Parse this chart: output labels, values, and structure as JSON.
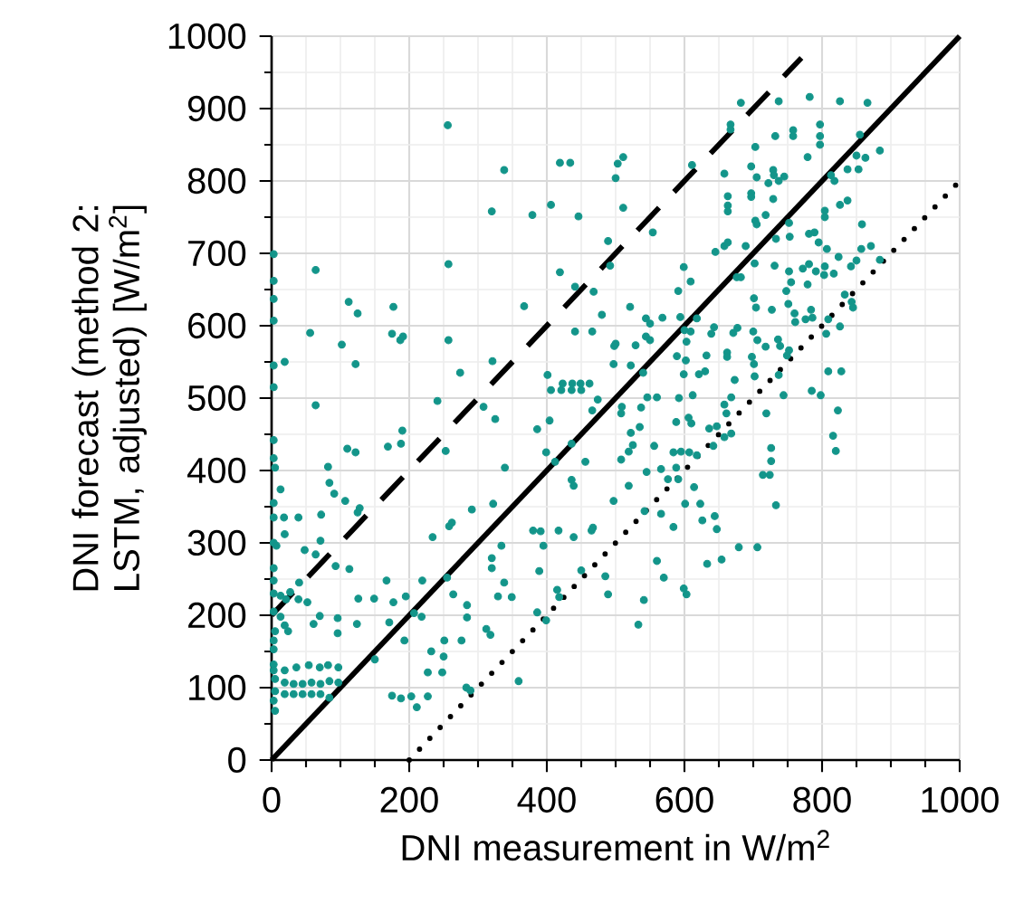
{
  "chart_data": {
    "type": "scatter",
    "xlabel": "DNI measurement in W/m$^{2}$",
    "ylabel": "DNI forecast (method 2: LSTM, adjusted) [W/m$^{2}$]",
    "xlim": [
      0,
      1000
    ],
    "ylim": [
      0,
      1000
    ],
    "xticks": [
      0,
      200,
      400,
      600,
      800,
      1000
    ],
    "yticks": [
      0,
      100,
      200,
      300,
      400,
      500,
      600,
      700,
      800,
      900,
      1000
    ],
    "grid": true,
    "series": [
      {
        "type": "scatter",
        "marker": "circle",
        "color": "#13958a",
        "x": [
          256,
          338,
          419,
          434,
          320,
          379,
          406,
          446,
          500,
          503,
          511,
          511,
          489,
          492,
          419,
          441,
          468,
          367,
          480,
          441,
          466,
          498,
          3,
          3,
          3,
          3,
          3,
          3,
          19,
          64,
          56,
          112,
          125,
          102,
          122,
          177,
          175,
          187,
          191,
          257,
          257,
          321,
          274,
          401,
          423,
          437,
          449,
          462,
          682,
          737,
          782,
          826,
          866,
          667,
          667,
          732,
          758,
          758,
          797,
          797,
          797,
          855,
          703,
          779,
          850,
          863,
          884,
          837,
          853,
          813,
          818,
          697,
          705,
          729,
          730,
          745,
          737,
          722,
          697,
          697,
          729,
          658,
          611,
          663,
          663,
          663,
          703,
          705,
          718,
          752,
          804,
          804,
          826,
          837,
          858,
          554,
          645,
          658,
          663,
          689,
          733,
          753,
          781,
          789,
          795,
          807,
          824,
          857,
          871,
          884,
          609,
          599,
          591,
          676,
          682,
          702,
          731,
          752,
          772,
          755,
          779,
          748,
          781,
          791,
          804,
          803,
          817,
          842,
          850,
          833,
          843,
          845,
          521,
          544,
          550,
          568,
          594,
          618,
          609,
          600,
          701,
          704,
          727,
          751,
          760,
          761,
          776,
          784,
          786,
          809,
          826,
          806,
          500,
          497,
          529,
          544,
          550,
          603,
          643,
          639,
          671,
          677,
          700,
          706,
          718,
          662,
          662,
          632,
          698,
          736,
          739,
          752,
          749,
          809,
          828,
          589,
          602,
          522,
          540,
          673,
          701,
          702,
          737,
          785,
          599,
          621,
          630,
          3,
          3,
          5,
          13,
          3,
          3,
          18,
          39,
          19,
          3,
          7,
          3,
          3,
          3,
          27,
          40,
          13,
          21,
          39,
          52,
          3,
          13,
          19,
          24,
          5,
          3,
          3,
          3,
          3,
          5,
          5,
          3,
          5,
          19,
          36,
          54,
          70,
          82,
          97,
          19,
          32,
          45,
          58,
          71,
          84,
          97,
          19,
          32,
          45,
          58,
          71,
          84,
          64,
          82,
          84,
          91,
          107,
          72,
          48,
          64,
          71,
          93,
          113,
          110,
          122,
          169,
          190,
          188,
          241,
          253,
          128,
          125,
          167,
          149,
          177,
          195,
          171,
          193,
          150,
          96,
          96,
          124,
          126,
          70,
          61,
          175,
          188,
          203,
          211,
          227,
          219,
          207,
          218,
          232,
          250,
          248,
          227,
          251,
          276,
          264,
          284,
          255,
          234,
          258,
          262,
          291,
          284,
          312,
          318,
          283,
          289,
          308,
          325,
          339,
          322,
          334,
          320,
          320,
          338,
          329,
          349,
          359,
          386,
          404,
          399,
          412,
          436,
          436,
          439,
          456,
          466,
          474,
          509,
          497,
          467,
          465,
          439,
          417,
          391,
          380,
          395,
          389,
          415,
          418,
          450,
          485,
          489,
          386,
          399,
          406,
          421,
          436,
          450,
          798,
          744,
          823,
          816,
          820,
          726,
          726,
          733,
          714,
          724,
          719,
          658,
          668,
          661,
          658,
          668,
          647,
          636,
          642,
          607,
          618,
          614,
          623,
          601,
          644,
          647,
          626,
          584,
          595,
          588,
          576,
          591,
          566,
          545,
          556,
          535,
          522,
          525,
          519,
          508,
          519,
          542,
          566,
          584,
          508,
          537,
          560,
          546,
          592,
          612,
          606,
          610,
          588,
          560,
          570,
          599,
          603,
          633,
          654,
          679,
          706,
          541,
          533
        ],
        "values": [
          877,
          815,
          825,
          825,
          758,
          753,
          767,
          751,
          804,
          824,
          833,
          763,
          717,
          683,
          674,
          654,
          647,
          627,
          615,
          592,
          592,
          572,
          699,
          662,
          637,
          607,
          545,
          515,
          550,
          677,
          590,
          633,
          617,
          574,
          547,
          626,
          589,
          580,
          585,
          685,
          580,
          551,
          535,
          532,
          520,
          520,
          520,
          520,
          908,
          910,
          916,
          910,
          908,
          878,
          871,
          862,
          870,
          862,
          878,
          862,
          850,
          864,
          847,
          833,
          835,
          832,
          842,
          816,
          816,
          808,
          800,
          820,
          805,
          815,
          808,
          806,
          800,
          797,
          783,
          778,
          775,
          810,
          822,
          766,
          758,
          779,
          745,
          740,
          753,
          742,
          759,
          750,
          767,
          773,
          740,
          729,
          702,
          710,
          715,
          710,
          720,
          723,
          727,
          729,
          715,
          706,
          695,
          706,
          710,
          691,
          661,
          681,
          648,
          667,
          667,
          686,
          683,
          675,
          679,
          660,
          657,
          648,
          685,
          675,
          682,
          670,
          672,
          682,
          690,
          643,
          633,
          625,
          626,
          610,
          603,
          611,
          612,
          610,
          592,
          594,
          638,
          625,
          622,
          630,
          617,
          605,
          609,
          622,
          611,
          609,
          599,
          589,
          575,
          547,
          573,
          585,
          580,
          578,
          598,
          589,
          590,
          597,
          592,
          580,
          571,
          563,
          557,
          559,
          557,
          581,
          572,
          566,
          559,
          537,
          537,
          558,
          552,
          545,
          535,
          525,
          547,
          530,
          532,
          510,
          533,
          533,
          537,
          442,
          417,
          404,
          374,
          355,
          335,
          335,
          335,
          312,
          300,
          296,
          265,
          248,
          230,
          232,
          245,
          227,
          222,
          222,
          218,
          205,
          198,
          186,
          178,
          178,
          165,
          153,
          132,
          124,
          112,
          95,
          82,
          68,
          124,
          128,
          131,
          128,
          131,
          128,
          107,
          105,
          105,
          107,
          105,
          109,
          107,
          91,
          91,
          91,
          91,
          91,
          86,
          490,
          405,
          383,
          368,
          358,
          339,
          290,
          284,
          303,
          268,
          264,
          430,
          425,
          433,
          455,
          437,
          496,
          427,
          348,
          342,
          248,
          223,
          218,
          226,
          190,
          165,
          139,
          196,
          175,
          188,
          223,
          199,
          188,
          89,
          85,
          88,
          73,
          88,
          248,
          203,
          198,
          150,
          143,
          121,
          121,
          165,
          165,
          229,
          214,
          252,
          308,
          323,
          328,
          346,
          197,
          181,
          173,
          100,
          96,
          488,
          471,
          404,
          354,
          296,
          279,
          265,
          245,
          226,
          225,
          109,
          457,
          469,
          425,
          412,
          437,
          387,
          379,
          412,
          483,
          498,
          488,
          358,
          321,
          317,
          308,
          317,
          316,
          317,
          296,
          261,
          235,
          225,
          262,
          254,
          229,
          204,
          193,
          511,
          511,
          511,
          511,
          504,
          504,
          483,
          448,
          427,
          431,
          413,
          352,
          394,
          394,
          479,
          491,
          501,
          479,
          446,
          451,
          461,
          458,
          434,
          425,
          421,
          377,
          354,
          354,
          337,
          319,
          331,
          425,
          426,
          404,
          388,
          388,
          402,
          398,
          434,
          460,
          452,
          435,
          426,
          415,
          379,
          344,
          340,
          322,
          479,
          487,
          501,
          501,
          500,
          504,
          473,
          465,
          467,
          275,
          252,
          237,
          229,
          271,
          277,
          294,
          294,
          221,
          187
        ]
      },
      {
        "type": "line",
        "line_style": "solid",
        "color": "#000000",
        "x": [
          0,
          1000
        ],
        "values": [
          0,
          1000
        ]
      },
      {
        "type": "line",
        "line_style": "dashed",
        "color": "#000000",
        "x": [
          0,
          770
        ],
        "values": [
          200,
          970
        ]
      },
      {
        "type": "line",
        "line_style": "dotted",
        "color": "#000000",
        "x": [
          200,
          1000
        ],
        "values": [
          0,
          800
        ]
      }
    ]
  }
}
